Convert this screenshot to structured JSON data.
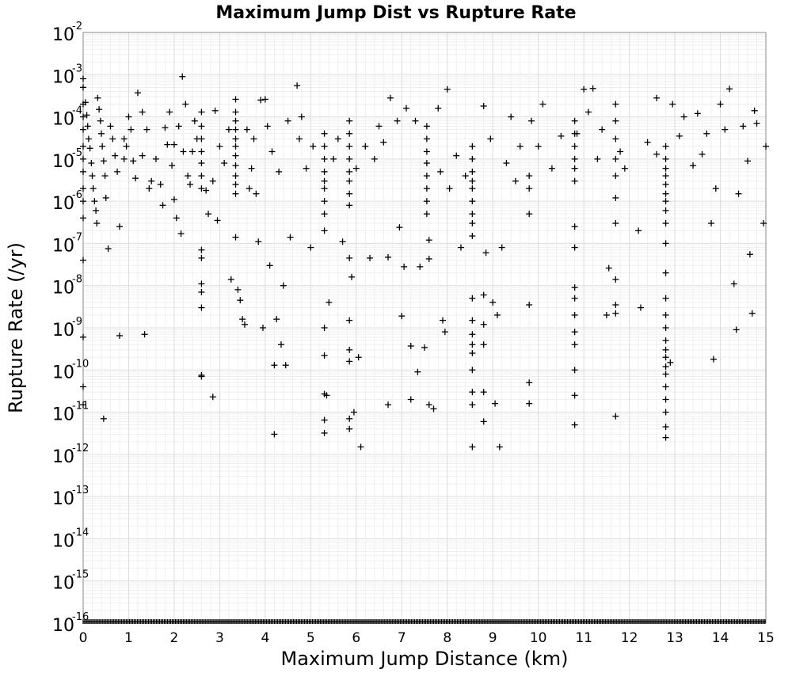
{
  "chart_data": {
    "type": "scatter",
    "title": "Maximum Jump Dist vs Rupture Rate",
    "xlabel": "Maximum Jump Distance (km)",
    "ylabel": "Rupture Rate (/yr)",
    "xlim": [
      0,
      15
    ],
    "ylim_log10": [
      -16,
      -2
    ],
    "y_scale": "log",
    "grid": true,
    "marker": "plus",
    "marker_color": "#000000",
    "x_ticks": [
      "0",
      "1",
      "2",
      "3",
      "4",
      "5",
      "6",
      "7",
      "8",
      "9",
      "10",
      "11",
      "12",
      "13",
      "14",
      "15"
    ],
    "y_ticks": [
      {
        "base": "10",
        "exp": "-2"
      },
      {
        "base": "10",
        "exp": "-3"
      },
      {
        "base": "10",
        "exp": "-4"
      },
      {
        "base": "10",
        "exp": "-5"
      },
      {
        "base": "10",
        "exp": "-6"
      },
      {
        "base": "10",
        "exp": "-7"
      },
      {
        "base": "10",
        "exp": "-8"
      },
      {
        "base": "10",
        "exp": "-9"
      },
      {
        "base": "10",
        "exp": "-10"
      },
      {
        "base": "10",
        "exp": "-11"
      },
      {
        "base": "10",
        "exp": "-12"
      },
      {
        "base": "10",
        "exp": "-13"
      },
      {
        "base": "10",
        "exp": "-14"
      },
      {
        "base": "10",
        "exp": "-15"
      },
      {
        "base": "10",
        "exp": "-16"
      }
    ],
    "points": [
      [
        0.0,
        0.0008
      ],
      [
        0.0,
        0.0005
      ],
      [
        0.0,
        0.0002
      ],
      [
        0.0,
        0.0001
      ],
      [
        0.0,
        5e-05
      ],
      [
        0.0,
        2e-05
      ],
      [
        0.0,
        1e-05
      ],
      [
        0.0,
        5e-06
      ],
      [
        0.0,
        2e-06
      ],
      [
        0.0,
        1e-06
      ],
      [
        0.0,
        4e-07
      ],
      [
        0.0,
        4e-08
      ],
      [
        0.0,
        6e-10
      ],
      [
        0.0,
        4e-11
      ],
      [
        0.0,
        1.5e-11
      ],
      [
        0.05,
        0.00022
      ],
      [
        0.08,
        0.00011
      ],
      [
        0.1,
        6e-05
      ],
      [
        0.12,
        3e-05
      ],
      [
        0.15,
        1.8e-05
      ],
      [
        0.18,
        8e-06
      ],
      [
        0.2,
        4e-06
      ],
      [
        0.22,
        2e-06
      ],
      [
        0.25,
        1e-06
      ],
      [
        0.28,
        6e-07
      ],
      [
        0.3,
        3e-07
      ],
      [
        0.32,
        0.00028
      ],
      [
        0.35,
        0.00015
      ],
      [
        0.38,
        8e-05
      ],
      [
        0.4,
        4e-05
      ],
      [
        0.42,
        2e-05
      ],
      [
        0.45,
        9e-06
      ],
      [
        0.48,
        4e-06
      ],
      [
        0.5,
        1.2e-06
      ],
      [
        0.55,
        7.5e-08
      ],
      [
        0.45,
        7e-12
      ],
      [
        0.6,
        6e-05
      ],
      [
        0.65,
        3e-05
      ],
      [
        0.7,
        1.2e-05
      ],
      [
        0.75,
        5e-06
      ],
      [
        0.8,
        2.5e-07
      ],
      [
        0.8,
        6.5e-10
      ],
      [
        0.9,
        1e-05
      ],
      [
        0.9,
        3e-05
      ],
      [
        0.95,
        2e-05
      ],
      [
        1.0,
        0.0001
      ],
      [
        1.05,
        5e-05
      ],
      [
        1.1,
        9e-06
      ],
      [
        1.15,
        3.5e-06
      ],
      [
        1.2,
        0.00037
      ],
      [
        1.3,
        1.2e-05
      ],
      [
        1.35,
        7e-10
      ],
      [
        1.3,
        0.00013
      ],
      [
        1.4,
        5e-05
      ],
      [
        1.45,
        2e-06
      ],
      [
        1.5,
        3e-06
      ],
      [
        1.6,
        1e-05
      ],
      [
        1.7,
        2.5e-06
      ],
      [
        1.75,
        8e-07
      ],
      [
        1.8,
        5.5e-05
      ],
      [
        1.85,
        2.2e-05
      ],
      [
        1.9,
        0.00013
      ],
      [
        1.95,
        7e-06
      ],
      [
        2.0,
        2.2e-05
      ],
      [
        2.0,
        1.1e-06
      ],
      [
        2.05,
        4e-07
      ],
      [
        2.1,
        6e-05
      ],
      [
        2.15,
        1.7e-07
      ],
      [
        2.18,
        0.0009
      ],
      [
        2.2,
        1.5e-05
      ],
      [
        2.25,
        0.0002
      ],
      [
        2.3,
        4e-06
      ],
      [
        2.35,
        2.5e-06
      ],
      [
        2.4,
        1.5e-05
      ],
      [
        2.45,
        8e-05
      ],
      [
        2.5,
        3e-05
      ],
      [
        2.6,
        0.00013
      ],
      [
        2.6,
        6e-05
      ],
      [
        2.6,
        3e-05
      ],
      [
        2.6,
        1.5e-05
      ],
      [
        2.6,
        8e-06
      ],
      [
        2.6,
        4e-06
      ],
      [
        2.6,
        2e-06
      ],
      [
        2.6,
        7e-08
      ],
      [
        2.6,
        4.5e-08
      ],
      [
        2.6,
        1.1e-08
      ],
      [
        2.6,
        7e-09
      ],
      [
        2.6,
        3e-09
      ],
      [
        2.6,
        7.5e-11
      ],
      [
        2.6,
        7e-11
      ],
      [
        2.7,
        1.8e-06
      ],
      [
        2.75,
        5e-07
      ],
      [
        2.85,
        2.3e-11
      ],
      [
        2.85,
        3e-06
      ],
      [
        2.9,
        0.00014
      ],
      [
        2.95,
        3.5e-07
      ],
      [
        3.0,
        2e-05
      ],
      [
        3.1,
        8e-06
      ],
      [
        3.2,
        5e-05
      ],
      [
        3.25,
        1.4e-08
      ],
      [
        3.35,
        0.00026
      ],
      [
        3.35,
        0.00013
      ],
      [
        3.35,
        8e-05
      ],
      [
        3.35,
        5e-05
      ],
      [
        3.35,
        3e-05
      ],
      [
        3.35,
        2e-05
      ],
      [
        3.35,
        1.2e-05
      ],
      [
        3.35,
        7e-06
      ],
      [
        3.35,
        4e-06
      ],
      [
        3.35,
        2.5e-06
      ],
      [
        3.35,
        1.5e-06
      ],
      [
        3.35,
        1.4e-07
      ],
      [
        3.4,
        8e-09
      ],
      [
        3.45,
        4.5e-09
      ],
      [
        3.5,
        1.6e-09
      ],
      [
        3.55,
        1.2e-09
      ],
      [
        3.6,
        5e-05
      ],
      [
        3.65,
        2e-06
      ],
      [
        3.7,
        6e-06
      ],
      [
        3.75,
        3e-05
      ],
      [
        3.8,
        1.5e-06
      ],
      [
        3.85,
        1.1e-07
      ],
      [
        3.9,
        0.00025
      ],
      [
        3.95,
        1e-09
      ],
      [
        4.0,
        0.00026
      ],
      [
        4.05,
        6e-05
      ],
      [
        4.1,
        3e-08
      ],
      [
        4.15,
        1.5e-05
      ],
      [
        4.2,
        1.3e-10
      ],
      [
        4.2,
        3e-12
      ],
      [
        4.25,
        1.6e-09
      ],
      [
        4.3,
        5e-06
      ],
      [
        4.35,
        4e-10
      ],
      [
        4.4,
        1e-08
      ],
      [
        4.45,
        1.3e-10
      ],
      [
        4.5,
        8e-05
      ],
      [
        4.55,
        1.4e-07
      ],
      [
        4.7,
        0.00055
      ],
      [
        4.75,
        3e-05
      ],
      [
        4.8,
        0.0001
      ],
      [
        4.9,
        6e-06
      ],
      [
        5.0,
        8e-08
      ],
      [
        5.05,
        2e-05
      ],
      [
        5.3,
        4e-05
      ],
      [
        5.3,
        2e-05
      ],
      [
        5.3,
        1e-05
      ],
      [
        5.3,
        5e-06
      ],
      [
        5.3,
        3e-06
      ],
      [
        5.3,
        2e-06
      ],
      [
        5.3,
        1e-06
      ],
      [
        5.3,
        5e-07
      ],
      [
        5.3,
        2e-07
      ],
      [
        5.3,
        1e-09
      ],
      [
        5.3,
        2.2e-10
      ],
      [
        5.3,
        2.7e-11
      ],
      [
        5.3,
        6.5e-12
      ],
      [
        5.3,
        3.2e-12
      ],
      [
        5.35,
        2.5e-11
      ],
      [
        5.4,
        4e-09
      ],
      [
        5.5,
        1e-05
      ],
      [
        5.6,
        3e-05
      ],
      [
        5.7,
        1.1e-07
      ],
      [
        5.85,
        8e-05
      ],
      [
        5.85,
        4e-05
      ],
      [
        5.85,
        2e-05
      ],
      [
        5.85,
        1e-05
      ],
      [
        5.85,
        5e-06
      ],
      [
        5.85,
        3e-06
      ],
      [
        5.85,
        1.5e-06
      ],
      [
        5.85,
        8e-07
      ],
      [
        5.85,
        4.5e-08
      ],
      [
        5.85,
        1.5e-09
      ],
      [
        5.85,
        3e-10
      ],
      [
        5.85,
        1.6e-10
      ],
      [
        5.85,
        7e-12
      ],
      [
        5.85,
        4e-12
      ],
      [
        5.9,
        1.6e-08
      ],
      [
        5.95,
        1e-11
      ],
      [
        6.05,
        2e-10
      ],
      [
        6.1,
        1.5e-12
      ],
      [
        6.0,
        6e-06
      ],
      [
        6.2,
        2e-05
      ],
      [
        6.3,
        4.5e-08
      ],
      [
        6.4,
        1e-05
      ],
      [
        6.5,
        6e-05
      ],
      [
        6.6,
        2.5e-05
      ],
      [
        6.7,
        4.7e-08
      ],
      [
        6.75,
        0.00028
      ],
      [
        6.7,
        1.5e-11
      ],
      [
        6.9,
        8e-05
      ],
      [
        6.95,
        2.4e-07
      ],
      [
        7.0,
        1.9e-09
      ],
      [
        7.05,
        2.8e-08
      ],
      [
        7.1,
        0.00016
      ],
      [
        7.2,
        2e-11
      ],
      [
        7.2,
        3.7e-10
      ],
      [
        7.3,
        8e-05
      ],
      [
        7.35,
        9e-11
      ],
      [
        7.4,
        2.8e-08
      ],
      [
        7.5,
        3.4e-10
      ],
      [
        7.6,
        1.5e-11
      ],
      [
        7.7,
        1.2e-11
      ],
      [
        7.55,
        6e-05
      ],
      [
        7.55,
        3e-05
      ],
      [
        7.55,
        1.5e-05
      ],
      [
        7.55,
        8e-06
      ],
      [
        7.55,
        4e-06
      ],
      [
        7.55,
        2e-06
      ],
      [
        7.55,
        1e-06
      ],
      [
        7.55,
        5e-07
      ],
      [
        7.6,
        1.2e-07
      ],
      [
        7.6,
        4.3e-08
      ],
      [
        7.8,
        0.00016
      ],
      [
        7.85,
        5e-06
      ],
      [
        7.9,
        1.5e-09
      ],
      [
        7.95,
        8e-10
      ],
      [
        8.0,
        0.00045
      ],
      [
        8.05,
        2e-06
      ],
      [
        8.2,
        1.2e-05
      ],
      [
        8.3,
        8e-08
      ],
      [
        8.4,
        4e-06
      ],
      [
        8.55,
        2e-05
      ],
      [
        8.55,
        1e-05
      ],
      [
        8.55,
        5e-06
      ],
      [
        8.55,
        3e-06
      ],
      [
        8.55,
        2e-06
      ],
      [
        8.55,
        1e-06
      ],
      [
        8.55,
        5e-07
      ],
      [
        8.55,
        3e-07
      ],
      [
        8.55,
        1.5e-07
      ],
      [
        8.55,
        5e-09
      ],
      [
        8.55,
        1.5e-09
      ],
      [
        8.55,
        7e-10
      ],
      [
        8.55,
        4e-10
      ],
      [
        8.55,
        2.5e-10
      ],
      [
        8.55,
        1e-10
      ],
      [
        8.55,
        3e-11
      ],
      [
        8.55,
        1.5e-11
      ],
      [
        8.55,
        1.5e-12
      ],
      [
        8.8,
        0.00018
      ],
      [
        8.8,
        6e-09
      ],
      [
        8.8,
        1.2e-09
      ],
      [
        8.8,
        4e-10
      ],
      [
        8.8,
        3e-11
      ],
      [
        8.8,
        6e-12
      ],
      [
        8.85,
        6e-08
      ],
      [
        8.95,
        3e-05
      ],
      [
        9.0,
        4e-09
      ],
      [
        9.05,
        1.6e-11
      ],
      [
        9.1,
        2e-09
      ],
      [
        9.15,
        1.5e-12
      ],
      [
        9.2,
        8e-08
      ],
      [
        9.3,
        8e-06
      ],
      [
        9.4,
        0.0001
      ],
      [
        9.5,
        3e-06
      ],
      [
        9.6,
        2e-05
      ],
      [
        9.8,
        4e-06
      ],
      [
        9.8,
        2e-06
      ],
      [
        9.8,
        5e-07
      ],
      [
        9.8,
        3.5e-09
      ],
      [
        9.8,
        5e-11
      ],
      [
        9.8,
        1.6e-11
      ],
      [
        9.85,
        8e-05
      ],
      [
        10.0,
        2e-05
      ],
      [
        10.1,
        0.0002
      ],
      [
        10.3,
        6e-06
      ],
      [
        10.5,
        3.5e-05
      ],
      [
        10.8,
        8e-05
      ],
      [
        10.8,
        4e-05
      ],
      [
        10.8,
        2e-05
      ],
      [
        10.8,
        1e-05
      ],
      [
        10.8,
        6e-06
      ],
      [
        10.8,
        3e-06
      ],
      [
        10.8,
        2.5e-07
      ],
      [
        10.8,
        8e-08
      ],
      [
        10.8,
        9e-09
      ],
      [
        10.8,
        5e-09
      ],
      [
        10.8,
        2e-09
      ],
      [
        10.8,
        8e-10
      ],
      [
        10.8,
        4e-10
      ],
      [
        10.8,
        1e-10
      ],
      [
        10.8,
        2.5e-11
      ],
      [
        10.8,
        5e-12
      ],
      [
        10.85,
        4e-05
      ],
      [
        11.0,
        0.00045
      ],
      [
        11.1,
        0.00013
      ],
      [
        11.2,
        0.00047
      ],
      [
        11.3,
        1e-05
      ],
      [
        11.4,
        5e-05
      ],
      [
        11.5,
        2e-09
      ],
      [
        11.55,
        2.6e-08
      ],
      [
        11.7,
        0.0002
      ],
      [
        11.7,
        8e-05
      ],
      [
        11.7,
        3e-05
      ],
      [
        11.7,
        1e-05
      ],
      [
        11.7,
        4e-06
      ],
      [
        11.7,
        1.2e-06
      ],
      [
        11.7,
        3e-07
      ],
      [
        11.7,
        1.4e-08
      ],
      [
        11.7,
        3.5e-09
      ],
      [
        11.7,
        2.2e-09
      ],
      [
        11.7,
        8e-12
      ],
      [
        11.8,
        1.5e-05
      ],
      [
        11.9,
        6e-06
      ],
      [
        12.2,
        2e-07
      ],
      [
        12.25,
        3e-09
      ],
      [
        12.4,
        2.5e-05
      ],
      [
        12.6,
        1.3e-05
      ],
      [
        12.6,
        0.00028
      ],
      [
        12.8,
        2e-05
      ],
      [
        12.8,
        1e-05
      ],
      [
        12.8,
        6e-06
      ],
      [
        12.8,
        4e-06
      ],
      [
        12.8,
        2.5e-06
      ],
      [
        12.8,
        1.5e-06
      ],
      [
        12.8,
        1e-06
      ],
      [
        12.8,
        6e-07
      ],
      [
        12.8,
        3e-07
      ],
      [
        12.8,
        1e-07
      ],
      [
        12.8,
        2e-08
      ],
      [
        12.8,
        5e-09
      ],
      [
        12.8,
        2e-09
      ],
      [
        12.8,
        1e-09
      ],
      [
        12.8,
        5e-10
      ],
      [
        12.8,
        3e-10
      ],
      [
        12.8,
        2e-10
      ],
      [
        12.8,
        1.2e-10
      ],
      [
        12.8,
        8e-11
      ],
      [
        12.8,
        4e-11
      ],
      [
        12.8,
        2e-11
      ],
      [
        12.8,
        1e-11
      ],
      [
        12.8,
        4.5e-12
      ],
      [
        12.8,
        2.5e-12
      ],
      [
        12.9,
        1.5e-10
      ],
      [
        12.95,
        0.0002
      ],
      [
        13.1,
        3.5e-05
      ],
      [
        13.2,
        0.0001
      ],
      [
        13.4,
        7e-06
      ],
      [
        13.5,
        0.00012
      ],
      [
        13.6,
        1.3e-05
      ],
      [
        13.7,
        4e-05
      ],
      [
        13.8,
        3e-07
      ],
      [
        13.85,
        1.8e-10
      ],
      [
        13.9,
        2e-06
      ],
      [
        14.0,
        0.0002
      ],
      [
        14.1,
        5e-05
      ],
      [
        14.2,
        0.00046
      ],
      [
        14.3,
        1.1e-08
      ],
      [
        14.35,
        9e-10
      ],
      [
        14.4,
        1.5e-06
      ],
      [
        14.5,
        6e-05
      ],
      [
        14.6,
        9e-06
      ],
      [
        14.65,
        5.5e-08
      ],
      [
        14.7,
        2.2e-09
      ],
      [
        14.75,
        0.00014
      ],
      [
        14.8,
        7e-05
      ],
      [
        14.95,
        3e-07
      ],
      [
        15.0,
        2e-05
      ]
    ],
    "floor_points": "dense row of markers at 1e-16 spanning 0-15 km"
  }
}
